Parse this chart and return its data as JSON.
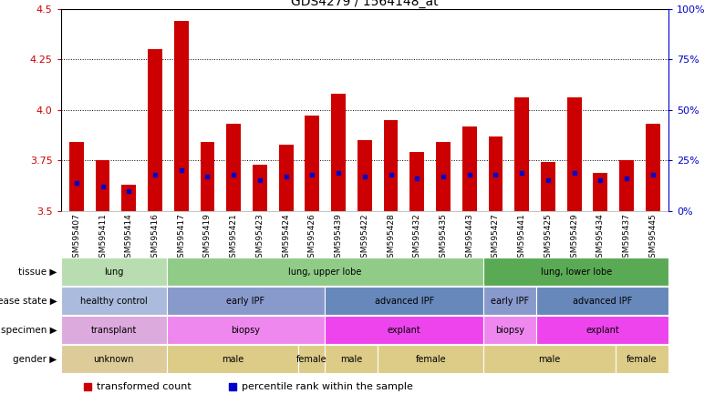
{
  "title": "GDS4279 / 1564148_at",
  "samples": [
    "GSM595407",
    "GSM595411",
    "GSM595414",
    "GSM595416",
    "GSM595417",
    "GSM595419",
    "GSM595421",
    "GSM595423",
    "GSM595424",
    "GSM595426",
    "GSM595439",
    "GSM595422",
    "GSM595428",
    "GSM595432",
    "GSM595435",
    "GSM595443",
    "GSM595427",
    "GSM595441",
    "GSM595425",
    "GSM595429",
    "GSM595434",
    "GSM595437",
    "GSM595445"
  ],
  "transformed_count": [
    3.84,
    3.75,
    3.63,
    4.3,
    4.44,
    3.84,
    3.93,
    3.73,
    3.83,
    3.97,
    4.08,
    3.85,
    3.95,
    3.79,
    3.84,
    3.92,
    3.87,
    4.06,
    3.74,
    4.06,
    3.69,
    3.75,
    3.93
  ],
  "percentile_rank": [
    14,
    12,
    10,
    18,
    20,
    17,
    18,
    15,
    17,
    18,
    19,
    17,
    18,
    16,
    17,
    18,
    18,
    19,
    15,
    19,
    15,
    16,
    18
  ],
  "ylim_left": [
    3.5,
    4.5
  ],
  "ylim_right": [
    0,
    100
  ],
  "yticks_left": [
    3.5,
    3.75,
    4.0,
    4.25,
    4.5
  ],
  "yticks_right": [
    0,
    25,
    50,
    75,
    100
  ],
  "bar_color": "#cc0000",
  "dot_color": "#0000cc",
  "bar_bottom": 3.5,
  "annotation_rows": [
    {
      "label": "tissue",
      "segments": [
        {
          "text": "lung",
          "start": 0,
          "end": 4,
          "color": "#b8ddb0"
        },
        {
          "text": "lung, upper lobe",
          "start": 4,
          "end": 16,
          "color": "#90cc88"
        },
        {
          "text": "lung, lower lobe",
          "start": 16,
          "end": 23,
          "color": "#5aaa55"
        }
      ]
    },
    {
      "label": "disease state",
      "segments": [
        {
          "text": "healthy control",
          "start": 0,
          "end": 4,
          "color": "#aabbdd"
        },
        {
          "text": "early IPF",
          "start": 4,
          "end": 10,
          "color": "#8899cc"
        },
        {
          "text": "advanced IPF",
          "start": 10,
          "end": 16,
          "color": "#6688bb"
        },
        {
          "text": "early IPF",
          "start": 16,
          "end": 18,
          "color": "#8899cc"
        },
        {
          "text": "advanced IPF",
          "start": 18,
          "end": 23,
          "color": "#6688bb"
        }
      ]
    },
    {
      "label": "specimen",
      "segments": [
        {
          "text": "transplant",
          "start": 0,
          "end": 4,
          "color": "#ddaadd"
        },
        {
          "text": "biopsy",
          "start": 4,
          "end": 10,
          "color": "#ee88ee"
        },
        {
          "text": "explant",
          "start": 10,
          "end": 16,
          "color": "#ee44ee"
        },
        {
          "text": "biopsy",
          "start": 16,
          "end": 18,
          "color": "#ee88ee"
        },
        {
          "text": "explant",
          "start": 18,
          "end": 23,
          "color": "#ee44ee"
        }
      ]
    },
    {
      "label": "gender",
      "segments": [
        {
          "text": "unknown",
          "start": 0,
          "end": 4,
          "color": "#ddcc99"
        },
        {
          "text": "male",
          "start": 4,
          "end": 9,
          "color": "#ddcc88"
        },
        {
          "text": "female",
          "start": 9,
          "end": 10,
          "color": "#ddcc88"
        },
        {
          "text": "male",
          "start": 10,
          "end": 12,
          "color": "#ddcc88"
        },
        {
          "text": "female",
          "start": 12,
          "end": 16,
          "color": "#ddcc88"
        },
        {
          "text": "male",
          "start": 16,
          "end": 21,
          "color": "#ddcc88"
        },
        {
          "text": "female",
          "start": 21,
          "end": 23,
          "color": "#ddcc88"
        }
      ]
    }
  ],
  "legend_items": [
    {
      "label": "transformed count",
      "color": "#cc0000"
    },
    {
      "label": "percentile rank within the sample",
      "color": "#0000cc"
    }
  ],
  "bg_color": "#ffffff",
  "left_axis_color": "#cc0000",
  "right_axis_color": "#0000cc"
}
